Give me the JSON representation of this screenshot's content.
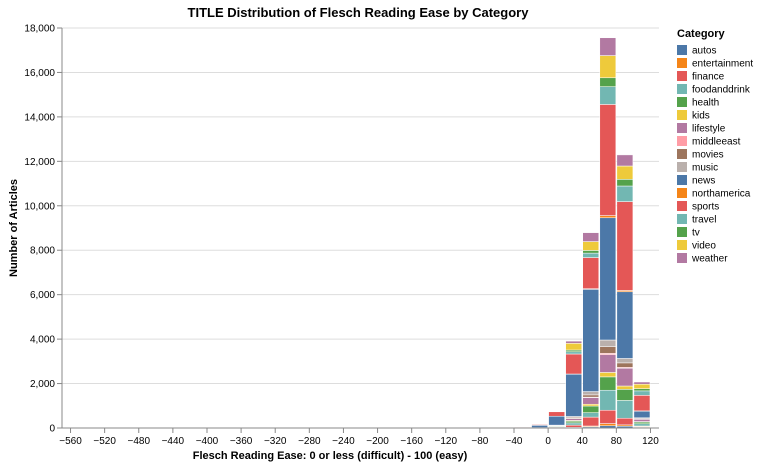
{
  "chart_data": {
    "type": "bar",
    "stacked": true,
    "title": "TITLE Distribution of Flesch Reading Ease by Category",
    "xlabel": "Flesch Reading Ease: 0 or less (difficult) - 100 (easy)",
    "ylabel": "Number of Articles",
    "xlim": [
      -570,
      130
    ],
    "ylim": [
      0,
      18000
    ],
    "grid": true,
    "legend_position": "right",
    "legend_title": "Category",
    "x_ticks": [
      "−560",
      "−520",
      "−480",
      "−440",
      "−400",
      "−360",
      "−320",
      "−280",
      "−240",
      "−200",
      "−160",
      "−120",
      "−80",
      "−40",
      "0",
      "40",
      "80",
      "120"
    ],
    "x_tick_values": [
      -560,
      -520,
      -480,
      -440,
      -400,
      -360,
      -320,
      -280,
      -240,
      -200,
      -160,
      -120,
      -80,
      -40,
      0,
      40,
      80,
      120
    ],
    "y_ticks": [
      "0",
      "2,000",
      "4,000",
      "6,000",
      "8,000",
      "10,000",
      "12,000",
      "14,000",
      "16,000",
      "18,000"
    ],
    "y_tick_values": [
      0,
      2000,
      4000,
      6000,
      8000,
      10000,
      12000,
      14000,
      16000,
      18000
    ],
    "bins": [
      [
        -40,
        -20
      ],
      [
        -20,
        0
      ],
      [
        0,
        20
      ],
      [
        20,
        40
      ],
      [
        40,
        60
      ],
      [
        60,
        80
      ],
      [
        80,
        100
      ],
      [
        100,
        120
      ]
    ],
    "series": [
      {
        "name": "autos",
        "color": "#4c78a8",
        "values": [
          0,
          0,
          0,
          20,
          50,
          100,
          80,
          40
        ]
      },
      {
        "name": "entertainment",
        "color": "#f58518",
        "values": [
          0,
          0,
          0,
          10,
          40,
          100,
          60,
          30
        ]
      },
      {
        "name": "finance",
        "color": "#e45756",
        "values": [
          0,
          0,
          40,
          100,
          400,
          600,
          300,
          20
        ]
      },
      {
        "name": "foodanddrink",
        "color": "#72b7b2",
        "values": [
          0,
          10,
          20,
          100,
          200,
          900,
          800,
          100
        ]
      },
      {
        "name": "health",
        "color": "#54a24b",
        "values": [
          0,
          0,
          30,
          80,
          300,
          600,
          500,
          80
        ]
      },
      {
        "name": "kids",
        "color": "#eeca3b",
        "values": [
          0,
          0,
          10,
          30,
          80,
          200,
          150,
          20
        ]
      },
      {
        "name": "lifestyle",
        "color": "#b279a2",
        "values": [
          0,
          10,
          10,
          80,
          300,
          800,
          800,
          100
        ]
      },
      {
        "name": "middleeast",
        "color": "#ff9da6",
        "values": [
          0,
          0,
          0,
          10,
          20,
          60,
          40,
          10
        ]
      },
      {
        "name": "movies",
        "color": "#9d755d",
        "values": [
          0,
          0,
          10,
          50,
          100,
          300,
          200,
          20
        ]
      },
      {
        "name": "music",
        "color": "#bab0ac",
        "values": [
          0,
          0,
          10,
          40,
          150,
          300,
          200,
          40
        ]
      },
      {
        "name": "news",
        "color": "#4c78a8",
        "values": [
          20,
          100,
          400,
          1900,
          4600,
          5500,
          3000,
          300
        ]
      },
      {
        "name": "northamerica",
        "color": "#f58518",
        "values": [
          0,
          0,
          0,
          10,
          30,
          100,
          60,
          10
        ]
      },
      {
        "name": "sports",
        "color": "#e45756",
        "values": [
          10,
          40,
          200,
          900,
          1400,
          5000,
          4000,
          700
        ]
      },
      {
        "name": "travel",
        "color": "#72b7b2",
        "values": [
          0,
          10,
          20,
          100,
          200,
          800,
          700,
          200
        ]
      },
      {
        "name": "tv",
        "color": "#54a24b",
        "values": [
          0,
          10,
          20,
          80,
          120,
          400,
          300,
          100
        ]
      },
      {
        "name": "video",
        "color": "#eeca3b",
        "values": [
          0,
          10,
          20,
          300,
          400,
          1000,
          600,
          200
        ]
      },
      {
        "name": "weather",
        "color": "#b279a2",
        "values": [
          0,
          10,
          20,
          100,
          400,
          800,
          500,
          100
        ]
      }
    ]
  }
}
